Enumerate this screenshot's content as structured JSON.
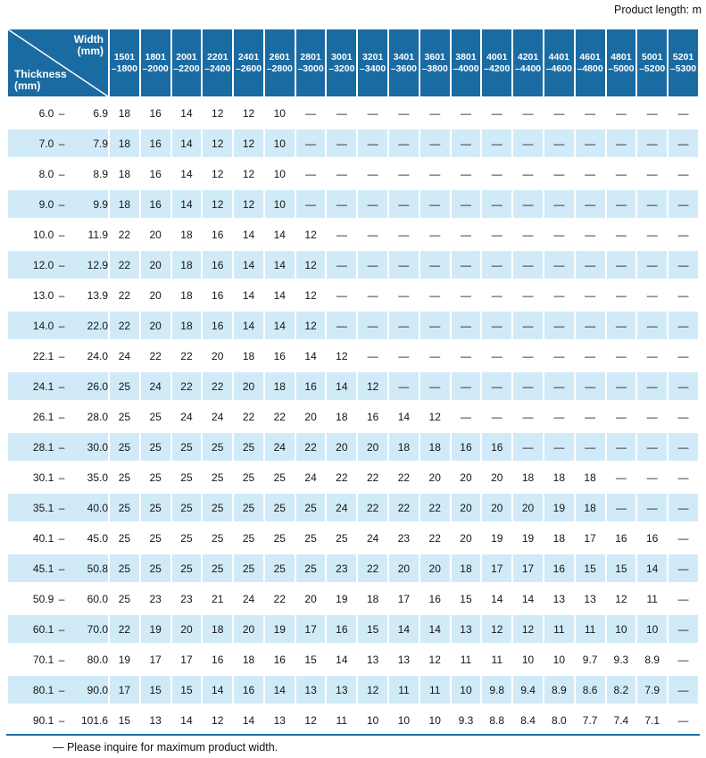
{
  "page": {
    "unit_note": "Product length: m",
    "footnote": "— Please inquire for maximum product width."
  },
  "colors": {
    "header_blue": "#1a6ba2",
    "stripe_blue": "#d1eaf8",
    "rule_blue": "#1f6fa8"
  },
  "table": {
    "corner": {
      "top_label": "Width",
      "top_sub": "(mm)",
      "bottom_label": "Thickness",
      "bottom_sub": "(mm)"
    },
    "columns": [
      {
        "from": "1501",
        "to": "–1800"
      },
      {
        "from": "1801",
        "to": "–2000"
      },
      {
        "from": "2001",
        "to": "–2200"
      },
      {
        "from": "2201",
        "to": "–2400"
      },
      {
        "from": "2401",
        "to": "–2600"
      },
      {
        "from": "2601",
        "to": "–2800"
      },
      {
        "from": "2801",
        "to": "–3000"
      },
      {
        "from": "3001",
        "to": "–3200"
      },
      {
        "from": "3201",
        "to": "–3400"
      },
      {
        "from": "3401",
        "to": "–3600"
      },
      {
        "from": "3601",
        "to": "–3800"
      },
      {
        "from": "3801",
        "to": "–4000"
      },
      {
        "from": "4001",
        "to": "–4200"
      },
      {
        "from": "4201",
        "to": "–4400"
      },
      {
        "from": "4401",
        "to": "–4600"
      },
      {
        "from": "4601",
        "to": "–4800"
      },
      {
        "from": "4801",
        "to": "–5000"
      },
      {
        "from": "5001",
        "to": "–5200"
      },
      {
        "from": "5201",
        "to": "–5300"
      }
    ],
    "rows": [
      {
        "min": "6.0",
        "dash": "–",
        "max": "6.9",
        "values": [
          "18",
          "16",
          "14",
          "12",
          "12",
          "10",
          "—",
          "—",
          "—",
          "—",
          "—",
          "—",
          "—",
          "—",
          "—",
          "—",
          "—",
          "—",
          "—"
        ]
      },
      {
        "min": "7.0",
        "dash": "–",
        "max": "7.9",
        "values": [
          "18",
          "16",
          "14",
          "12",
          "12",
          "10",
          "—",
          "—",
          "—",
          "—",
          "—",
          "—",
          "—",
          "—",
          "—",
          "—",
          "—",
          "—",
          "—"
        ]
      },
      {
        "min": "8.0",
        "dash": "–",
        "max": "8.9",
        "values": [
          "18",
          "16",
          "14",
          "12",
          "12",
          "10",
          "—",
          "—",
          "—",
          "—",
          "—",
          "—",
          "—",
          "—",
          "—",
          "—",
          "—",
          "—",
          "—"
        ]
      },
      {
        "min": "9.0",
        "dash": "–",
        "max": "9.9",
        "values": [
          "18",
          "16",
          "14",
          "12",
          "12",
          "10",
          "—",
          "—",
          "—",
          "—",
          "—",
          "—",
          "—",
          "—",
          "—",
          "—",
          "—",
          "—",
          "—"
        ]
      },
      {
        "min": "10.0",
        "dash": "–",
        "max": "11.9",
        "values": [
          "22",
          "20",
          "18",
          "16",
          "14",
          "14",
          "12",
          "—",
          "—",
          "—",
          "—",
          "—",
          "—",
          "—",
          "—",
          "—",
          "—",
          "—",
          "—"
        ]
      },
      {
        "min": "12.0",
        "dash": "–",
        "max": "12.9",
        "values": [
          "22",
          "20",
          "18",
          "16",
          "14",
          "14",
          "12",
          "—",
          "—",
          "—",
          "—",
          "—",
          "—",
          "—",
          "—",
          "—",
          "—",
          "—",
          "—"
        ]
      },
      {
        "min": "13.0",
        "dash": "–",
        "max": "13.9",
        "values": [
          "22",
          "20",
          "18",
          "16",
          "14",
          "14",
          "12",
          "—",
          "—",
          "—",
          "—",
          "—",
          "—",
          "—",
          "—",
          "—",
          "—",
          "—",
          "—"
        ]
      },
      {
        "min": "14.0",
        "dash": "–",
        "max": "22.0",
        "values": [
          "22",
          "20",
          "18",
          "16",
          "14",
          "14",
          "12",
          "—",
          "—",
          "—",
          "—",
          "—",
          "—",
          "—",
          "—",
          "—",
          "—",
          "—",
          "—"
        ]
      },
      {
        "min": "22.1",
        "dash": "–",
        "max": "24.0",
        "values": [
          "24",
          "22",
          "22",
          "20",
          "18",
          "16",
          "14",
          "12",
          "—",
          "—",
          "—",
          "—",
          "—",
          "—",
          "—",
          "—",
          "—",
          "—",
          "—"
        ]
      },
      {
        "min": "24.1",
        "dash": "–",
        "max": "26.0",
        "values": [
          "25",
          "24",
          "22",
          "22",
          "20",
          "18",
          "16",
          "14",
          "12",
          "—",
          "—",
          "—",
          "—",
          "—",
          "—",
          "—",
          "—",
          "—",
          "—"
        ]
      },
      {
        "min": "26.1",
        "dash": "–",
        "max": "28.0",
        "values": [
          "25",
          "25",
          "24",
          "24",
          "22",
          "22",
          "20",
          "18",
          "16",
          "14",
          "12",
          "—",
          "—",
          "—",
          "—",
          "—",
          "—",
          "—",
          "—"
        ]
      },
      {
        "min": "28.1",
        "dash": "–",
        "max": "30.0",
        "values": [
          "25",
          "25",
          "25",
          "25",
          "25",
          "24",
          "22",
          "20",
          "20",
          "18",
          "18",
          "16",
          "16",
          "—",
          "—",
          "—",
          "—",
          "—",
          "—"
        ]
      },
      {
        "min": "30.1",
        "dash": "–",
        "max": "35.0",
        "values": [
          "25",
          "25",
          "25",
          "25",
          "25",
          "25",
          "24",
          "22",
          "22",
          "22",
          "20",
          "20",
          "20",
          "18",
          "18",
          "18",
          "—",
          "—",
          "—"
        ]
      },
      {
        "min": "35.1",
        "dash": "–",
        "max": "40.0",
        "values": [
          "25",
          "25",
          "25",
          "25",
          "25",
          "25",
          "25",
          "24",
          "22",
          "22",
          "22",
          "20",
          "20",
          "20",
          "19",
          "18",
          "—",
          "—",
          "—"
        ]
      },
      {
        "min": "40.1",
        "dash": "–",
        "max": "45.0",
        "values": [
          "25",
          "25",
          "25",
          "25",
          "25",
          "25",
          "25",
          "25",
          "24",
          "23",
          "22",
          "20",
          "19",
          "19",
          "18",
          "17",
          "16",
          "16",
          "—"
        ]
      },
      {
        "min": "45.1",
        "dash": "–",
        "max": "50.8",
        "values": [
          "25",
          "25",
          "25",
          "25",
          "25",
          "25",
          "25",
          "23",
          "22",
          "20",
          "20",
          "18",
          "17",
          "17",
          "16",
          "15",
          "15",
          "14",
          "—"
        ]
      },
      {
        "min": "50.9",
        "dash": "–",
        "max": "60.0",
        "values": [
          "25",
          "23",
          "23",
          "21",
          "24",
          "22",
          "20",
          "19",
          "18",
          "17",
          "16",
          "15",
          "14",
          "14",
          "13",
          "13",
          "12",
          "11",
          "—"
        ]
      },
      {
        "min": "60.1",
        "dash": "–",
        "max": "70.0",
        "values": [
          "22",
          "19",
          "20",
          "18",
          "20",
          "19",
          "17",
          "16",
          "15",
          "14",
          "14",
          "13",
          "12",
          "12",
          "11",
          "11",
          "10",
          "10",
          "—"
        ]
      },
      {
        "min": "70.1",
        "dash": "–",
        "max": "80.0",
        "values": [
          "19",
          "17",
          "17",
          "16",
          "18",
          "16",
          "15",
          "14",
          "13",
          "13",
          "12",
          "11",
          "11",
          "10",
          "10",
          "9.7",
          "9.3",
          "8.9",
          "—"
        ]
      },
      {
        "min": "80.1",
        "dash": "–",
        "max": "90.0",
        "values": [
          "17",
          "15",
          "15",
          "14",
          "16",
          "14",
          "13",
          "13",
          "12",
          "11",
          "11",
          "10",
          "9.8",
          "9.4",
          "8.9",
          "8.6",
          "8.2",
          "7.9",
          "—"
        ]
      },
      {
        "min": "90.1",
        "dash": "–",
        "max": "101.6",
        "values": [
          "15",
          "13",
          "14",
          "12",
          "14",
          "13",
          "12",
          "11",
          "10",
          "10",
          "10",
          "9.3",
          "8.8",
          "8.4",
          "8.0",
          "7.7",
          "7.4",
          "7.1",
          "—"
        ]
      }
    ]
  }
}
